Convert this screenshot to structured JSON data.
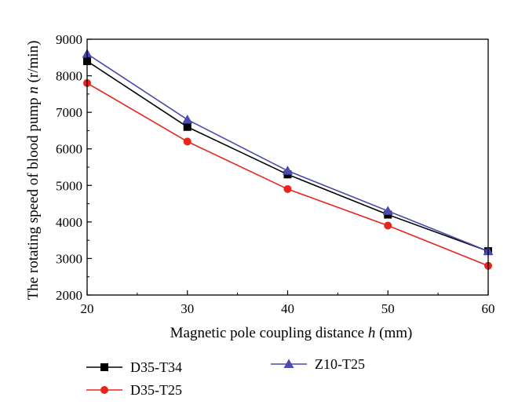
{
  "chart_data": {
    "type": "line",
    "x": [
      20,
      30,
      40,
      50,
      60
    ],
    "xlim": [
      20,
      60
    ],
    "ylim": [
      2000,
      9000
    ],
    "xticks": [
      20,
      30,
      40,
      50,
      60
    ],
    "yticks": [
      2000,
      3000,
      4000,
      5000,
      6000,
      7000,
      8000,
      9000
    ],
    "xlabel": {
      "prefix": "Magnetic pole coupling distance ",
      "var": "h",
      "suffix": " (mm)"
    },
    "ylabel": {
      "prefix": "The rotating speed of blood pump ",
      "var": "n",
      "suffix": " (r/min)"
    },
    "grid": false,
    "legend_position": "bottom",
    "series": [
      {
        "name": "D35-T34",
        "color": "#000000",
        "marker": "square",
        "values": [
          8400,
          6600,
          5300,
          4200,
          3200
        ]
      },
      {
        "name": "D35-T25",
        "color": "#e8241c",
        "marker": "circle",
        "values": [
          7800,
          6200,
          4900,
          3900,
          2800
        ]
      },
      {
        "name": "Z10-T25",
        "color": "#4a4ab0",
        "marker": "triangle",
        "values": [
          8600,
          6800,
          5400,
          4300,
          3200
        ]
      }
    ]
  }
}
